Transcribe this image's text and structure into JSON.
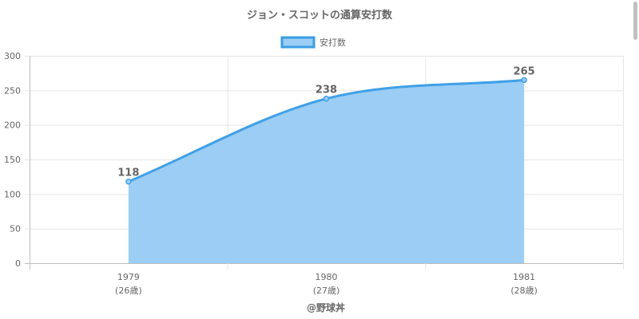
{
  "chart_data": {
    "type": "area",
    "title": "ジョン・スコットの通算安打数",
    "categories": [
      "1979",
      "1980",
      "1981"
    ],
    "sub_labels": [
      "(26歳)",
      "(27歳)",
      "(28歳)"
    ],
    "series": [
      {
        "name": "安打数",
        "values": [
          118,
          238,
          265
        ]
      }
    ],
    "ylim": [
      0,
      300
    ],
    "yticks": [
      "0",
      "50",
      "100",
      "150",
      "200",
      "250",
      "300"
    ],
    "grid": true,
    "legend": "top",
    "smooth": true,
    "colors": {
      "line": "#40a0e6",
      "fill": "#9bcdf5",
      "legend_fill": "#9bcdf5",
      "legend_border": "#3a9de3"
    }
  },
  "footer": "@野球丼"
}
